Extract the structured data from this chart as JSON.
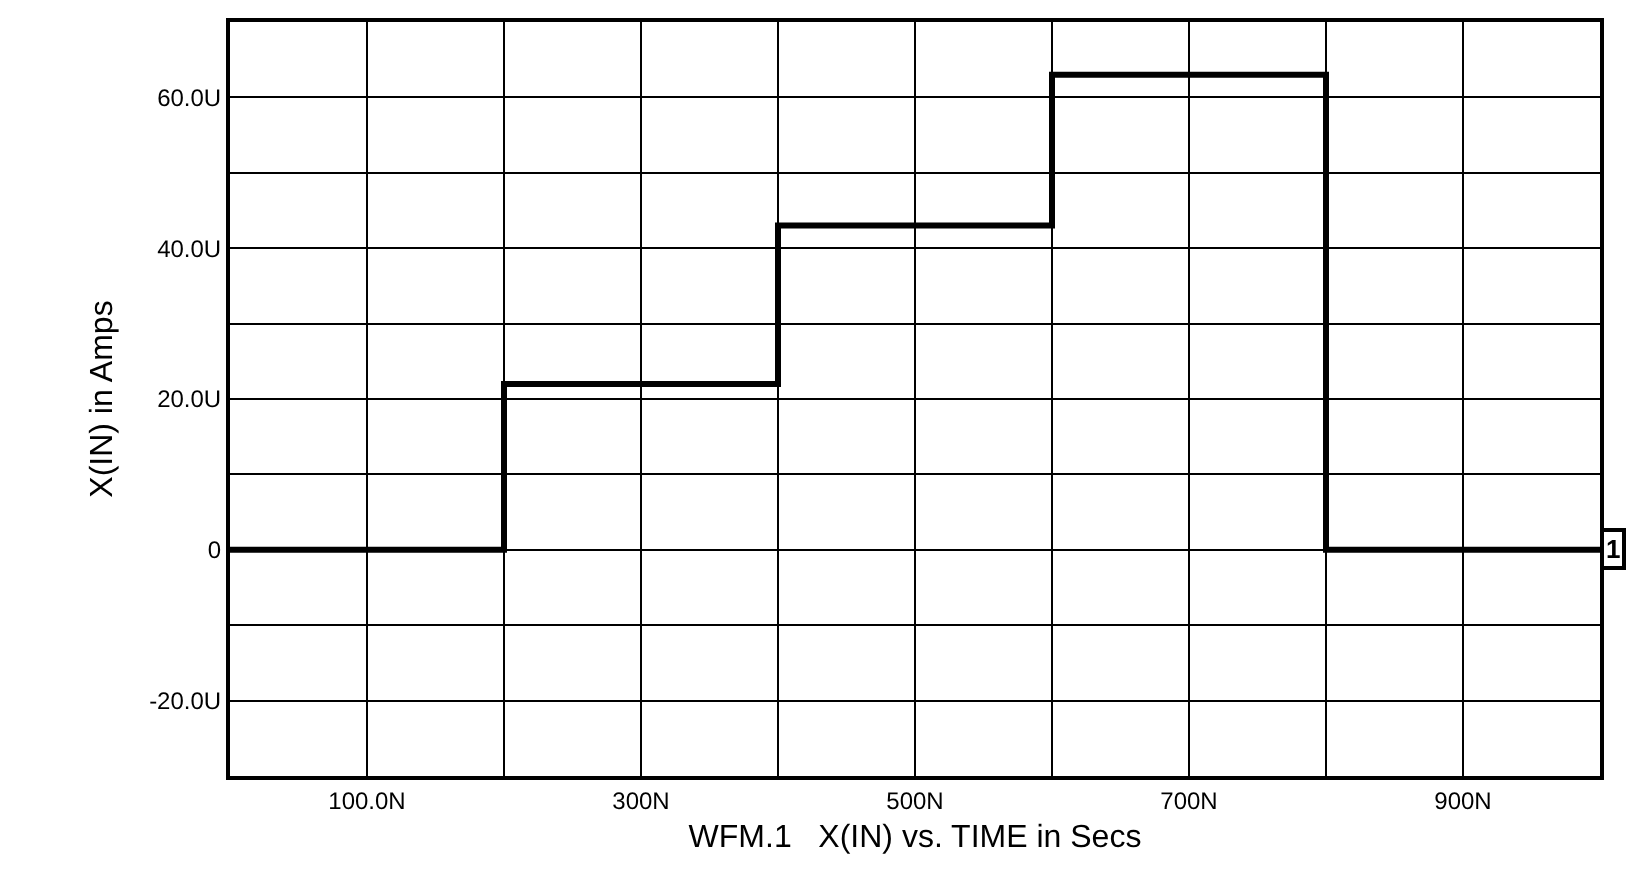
{
  "chart_data": {
    "type": "step",
    "xlabel": "WFM.1   X(IN) vs. TIME in Secs",
    "ylabel": "X(IN) in Amps",
    "x": [
      0,
      200,
      400,
      600,
      800,
      1000
    ],
    "series": [
      {
        "color": "#000000",
        "values": [
          0,
          22,
          43,
          63,
          0,
          0
        ]
      }
    ],
    "xlim": [
      0,
      1000
    ],
    "xticks": [
      {
        "value": 0,
        "label": null
      },
      {
        "value": 100,
        "label": "100.0N"
      },
      {
        "value": 200,
        "label": null
      },
      {
        "value": 300,
        "label": "300N"
      },
      {
        "value": 400,
        "label": null
      },
      {
        "value": 500,
        "label": "500N"
      },
      {
        "value": 600,
        "label": null
      },
      {
        "value": 700,
        "label": "700N"
      },
      {
        "value": 800,
        "label": null
      },
      {
        "value": 900,
        "label": "900N"
      },
      {
        "value": 1000,
        "label": null
      }
    ],
    "ylim": [
      -30,
      70
    ],
    "yticks": [
      {
        "value": -30,
        "label": null
      },
      {
        "value": -20,
        "label": "-20.0U"
      },
      {
        "value": -10,
        "label": null
      },
      {
        "value": 0,
        "label": "0"
      },
      {
        "value": 10,
        "label": null
      },
      {
        "value": 20,
        "label": "20.0U"
      },
      {
        "value": 30,
        "label": null
      },
      {
        "value": 40,
        "label": "40.0U"
      },
      {
        "value": 50,
        "label": null
      },
      {
        "value": 60,
        "label": "60.0U"
      },
      {
        "value": 70,
        "label": null
      }
    ],
    "annotations": [
      {
        "text": "1",
        "x": 1000,
        "y": 0
      }
    ],
    "grid": true,
    "marker": "none",
    "line_style": "solid"
  }
}
